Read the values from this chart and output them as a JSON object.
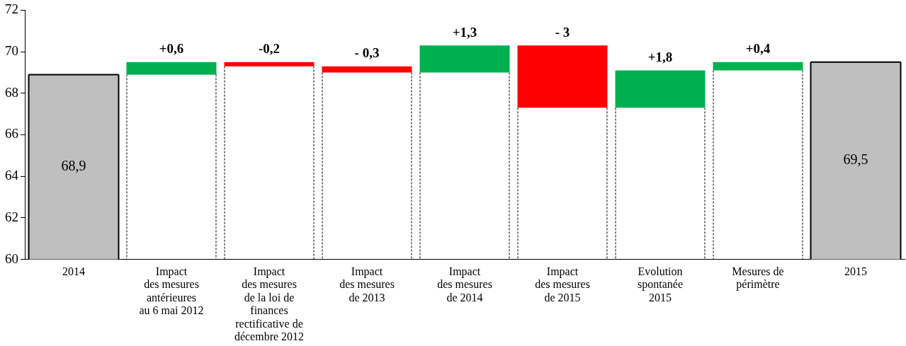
{
  "chart_data": {
    "type": "bar",
    "categories": [
      "2014",
      "Impact\ndes mesures\nantérieures\nau 6 mai 2012",
      "Impact\ndes mesures\nde la loi de\nfinances\nrectificative de\ndécembre 2012",
      "Impact\ndes mesures\nde 2013",
      "Impact\ndes mesures\nde 2014",
      "Impact\ndes mesures\nde 2015",
      "Evolution\nspontanée\n2015",
      "Mesures de\npérimètre",
      "2015"
    ],
    "values": [
      68.9,
      0.6,
      -0.2,
      -0.3,
      1.3,
      -3,
      1.8,
      0.4,
      69.5
    ],
    "base": [
      null,
      68.9,
      69.5,
      69.3,
      69.0,
      70.3,
      67.3,
      69.1,
      null
    ],
    "colors": [
      "#bfbfbf",
      "#00b050",
      "#ff0000",
      "#ff0000",
      "#00b050",
      "#ff0000",
      "#00b050",
      "#00b050",
      "#bfbfbf"
    ],
    "value_labels": [
      "68,9",
      "+0,6",
      "-0,2",
      "- 0,3",
      "+1,3",
      "- 3",
      "+1,8",
      "+0,4",
      "69,5"
    ],
    "ylim": [
      60,
      72
    ],
    "yticks": [
      60,
      62,
      64,
      66,
      68,
      70,
      72
    ],
    "grid": false,
    "legend": false
  }
}
